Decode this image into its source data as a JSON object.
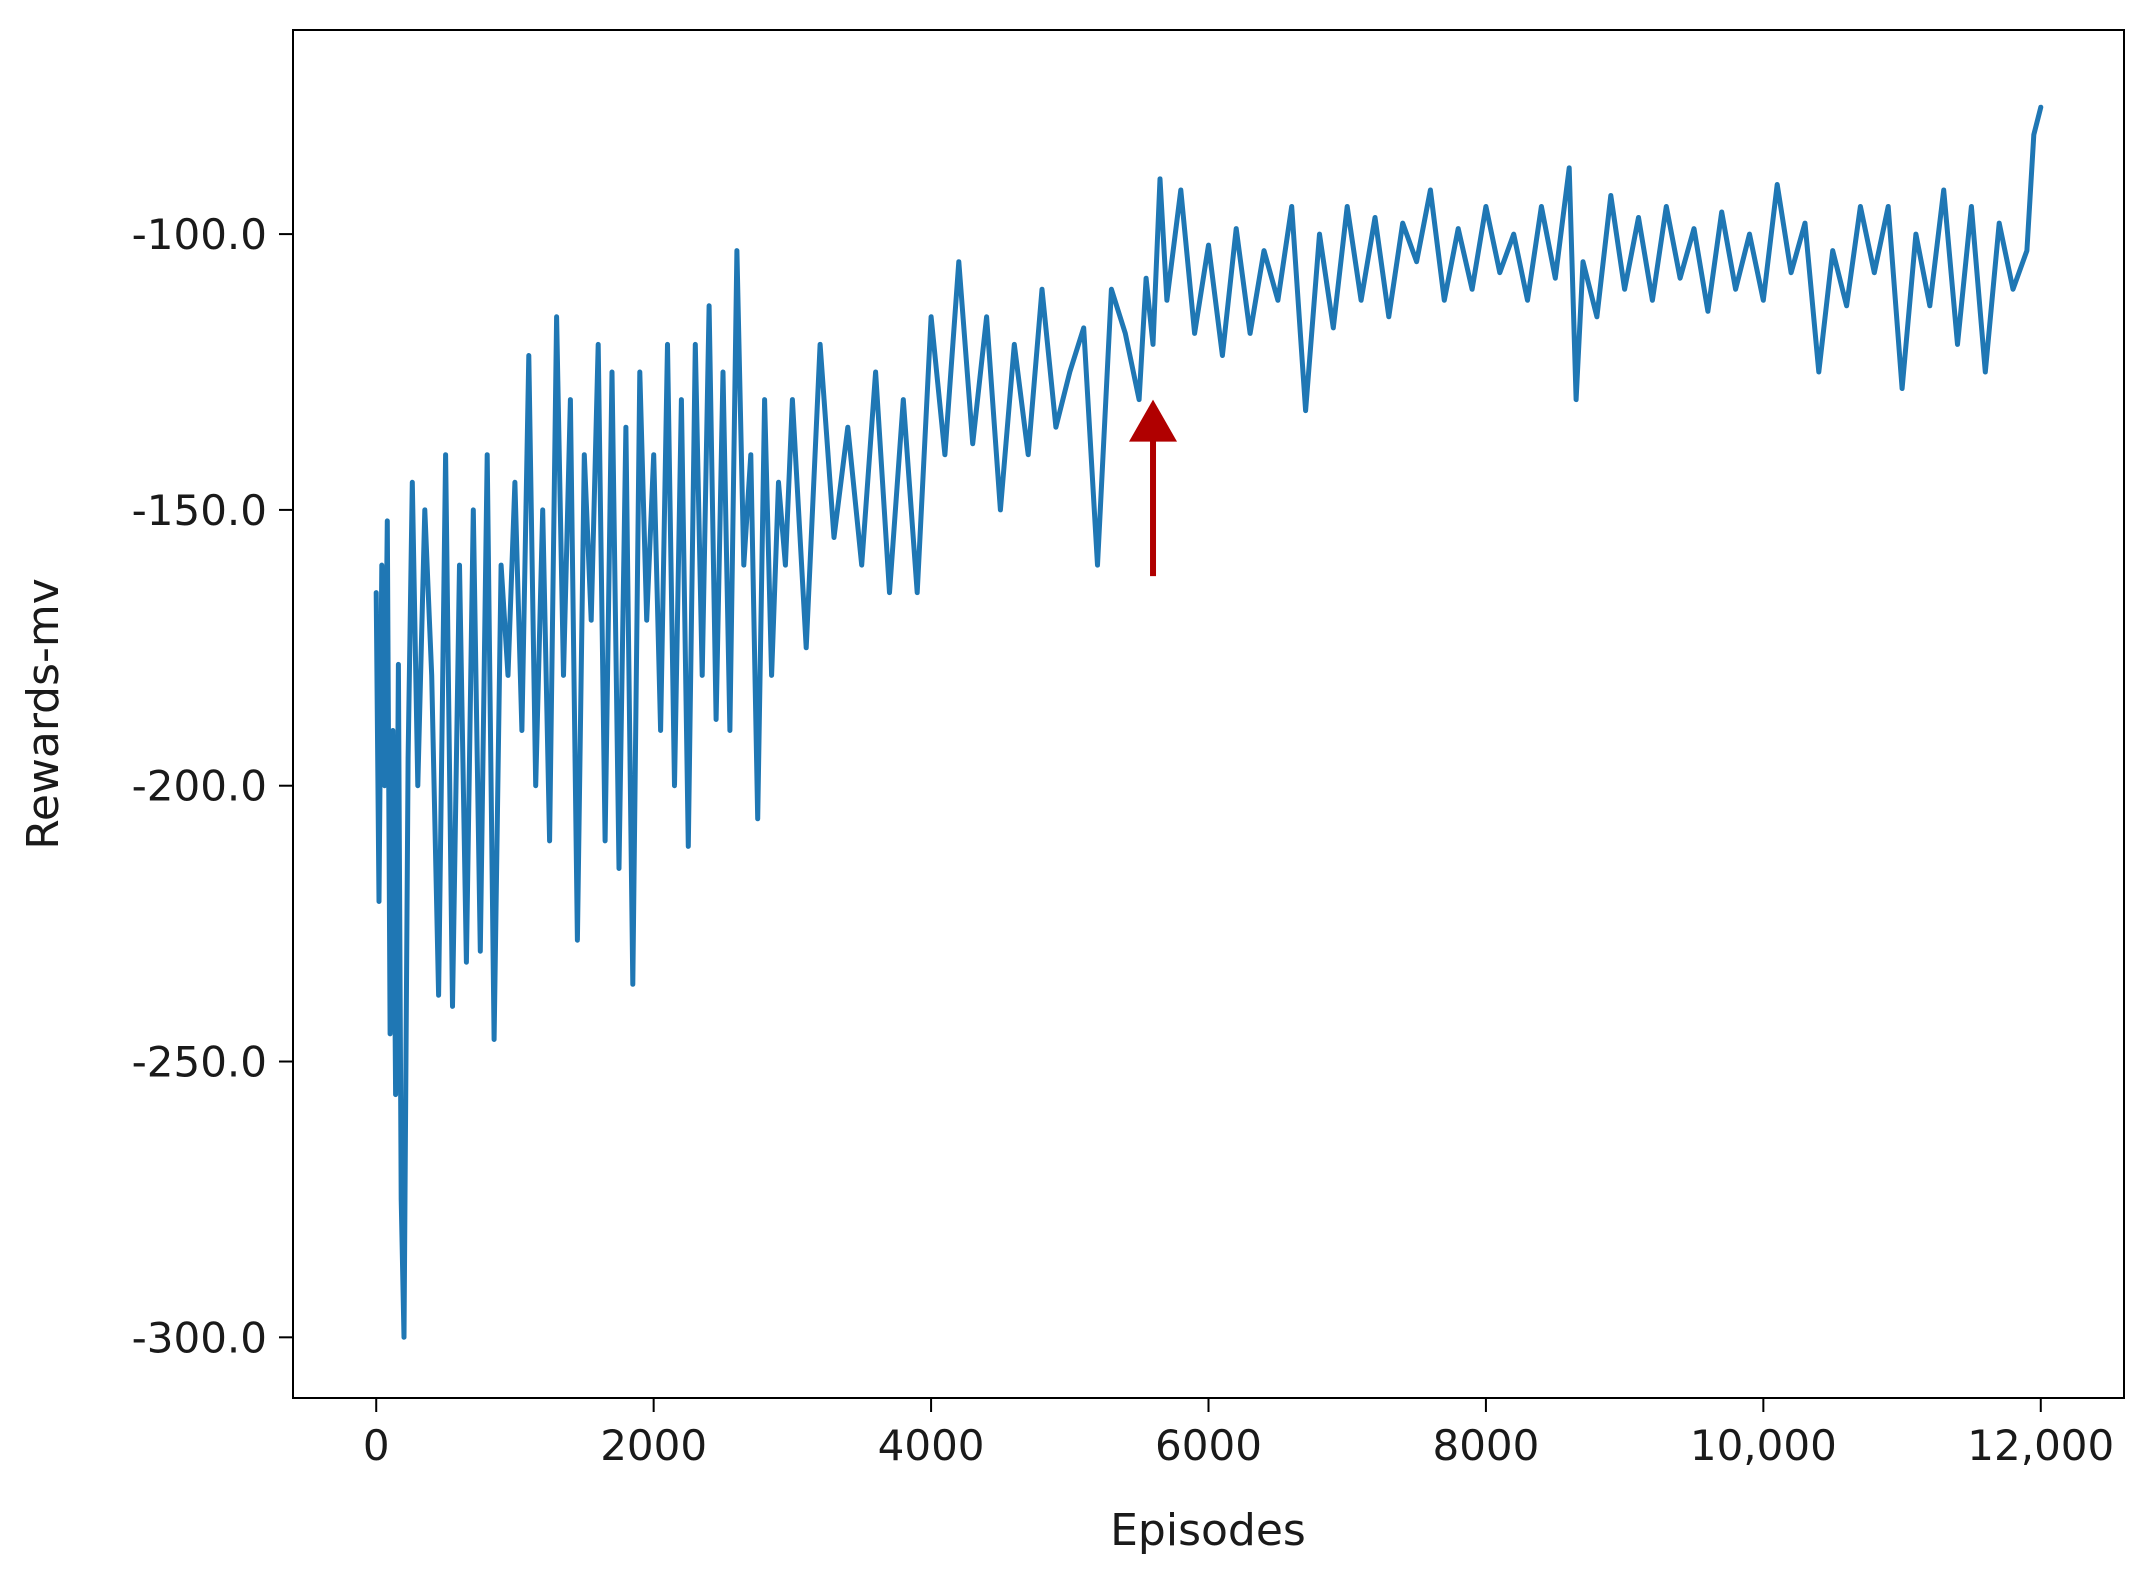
{
  "chart_data": {
    "type": "line",
    "title": "",
    "xlabel": "Episodes",
    "ylabel": "Rewards-mv",
    "xlim": [
      -600,
      12600
    ],
    "ylim": [
      -311,
      -63
    ],
    "x_ticks": [
      {
        "value": 0,
        "label": "0"
      },
      {
        "value": 2000,
        "label": "2000"
      },
      {
        "value": 4000,
        "label": "4000"
      },
      {
        "value": 6000,
        "label": "6000"
      },
      {
        "value": 8000,
        "label": "8000"
      },
      {
        "value": 10000,
        "label": "10,000"
      },
      {
        "value": 12000,
        "label": "12,000"
      }
    ],
    "y_ticks": [
      {
        "value": -100,
        "label": "-100.0"
      },
      {
        "value": -150,
        "label": "-150.0"
      },
      {
        "value": -200,
        "label": "-200.0"
      },
      {
        "value": -250,
        "label": "-250.0"
      },
      {
        "value": -300,
        "label": "-300.0"
      }
    ],
    "grid": false,
    "series": [
      {
        "color": "#1f77b4",
        "x": [
          0,
          20,
          40,
          60,
          80,
          100,
          120,
          140,
          160,
          180,
          200,
          230,
          260,
          300,
          350,
          400,
          450,
          500,
          550,
          600,
          650,
          700,
          750,
          800,
          850,
          900,
          950,
          1000,
          1050,
          1100,
          1150,
          1200,
          1250,
          1300,
          1350,
          1400,
          1450,
          1500,
          1550,
          1600,
          1650,
          1700,
          1750,
          1800,
          1850,
          1900,
          1950,
          2000,
          2050,
          2100,
          2150,
          2200,
          2250,
          2300,
          2350,
          2400,
          2450,
          2500,
          2550,
          2600,
          2650,
          2700,
          2750,
          2800,
          2850,
          2900,
          2950,
          3000,
          3100,
          3200,
          3300,
          3400,
          3500,
          3600,
          3700,
          3800,
          3900,
          4000,
          4100,
          4200,
          4300,
          4400,
          4500,
          4600,
          4700,
          4800,
          4900,
          5000,
          5100,
          5200,
          5300,
          5400,
          5500,
          5550,
          5600,
          5650,
          5700,
          5800,
          5900,
          6000,
          6100,
          6200,
          6300,
          6400,
          6500,
          6600,
          6700,
          6800,
          6900,
          7000,
          7100,
          7200,
          7300,
          7400,
          7500,
          7600,
          7700,
          7800,
          7900,
          8000,
          8100,
          8200,
          8300,
          8400,
          8500,
          8600,
          8650,
          8700,
          8800,
          8900,
          9000,
          9100,
          9200,
          9300,
          9400,
          9500,
          9600,
          9700,
          9800,
          9900,
          10000,
          10100,
          10200,
          10300,
          10400,
          10500,
          10600,
          10700,
          10800,
          10900,
          11000,
          11100,
          11200,
          11300,
          11400,
          11500,
          11600,
          11700,
          11800,
          11900,
          11950,
          12000
        ],
        "y": [
          -165,
          -221,
          -160,
          -200,
          -152,
          -245,
          -190,
          -256,
          -178,
          -275,
          -300,
          -195,
          -145,
          -200,
          -150,
          -180,
          -238,
          -140,
          -240,
          -160,
          -232,
          -150,
          -230,
          -140,
          -246,
          -160,
          -180,
          -145,
          -190,
          -122,
          -200,
          -150,
          -210,
          -115,
          -180,
          -130,
          -228,
          -140,
          -170,
          -120,
          -210,
          -125,
          -215,
          -135,
          -236,
          -125,
          -170,
          -140,
          -190,
          -120,
          -200,
          -130,
          -211,
          -120,
          -180,
          -113,
          -188,
          -125,
          -190,
          -103,
          -160,
          -140,
          -206,
          -130,
          -180,
          -145,
          -160,
          -130,
          -175,
          -120,
          -155,
          -135,
          -160,
          -125,
          -165,
          -130,
          -165,
          -115,
          -140,
          -105,
          -138,
          -115,
          -150,
          -120,
          -140,
          -110,
          -135,
          -125,
          -117,
          -160,
          -110,
          -118,
          -130,
          -108,
          -120,
          -90,
          -112,
          -92,
          -118,
          -102,
          -122,
          -99,
          -118,
          -103,
          -112,
          -95,
          -132,
          -100,
          -117,
          -95,
          -112,
          -97,
          -115,
          -98,
          -105,
          -92,
          -112,
          -99,
          -110,
          -95,
          -107,
          -100,
          -112,
          -95,
          -108,
          -88,
          -130,
          -105,
          -115,
          -93,
          -110,
          -97,
          -112,
          -95,
          -108,
          -99,
          -114,
          -96,
          -110,
          -100,
          -112,
          -91,
          -107,
          -98,
          -125,
          -103,
          -113,
          -95,
          -107,
          -95,
          -128,
          -100,
          -113,
          -92,
          -120,
          -95,
          -125,
          -98,
          -110,
          -103,
          -82,
          -77
        ]
      }
    ],
    "annotations": [
      {
        "type": "arrow",
        "color": "#b00000",
        "x": 5600,
        "y_tail": -162,
        "y_head": -130
      }
    ]
  }
}
